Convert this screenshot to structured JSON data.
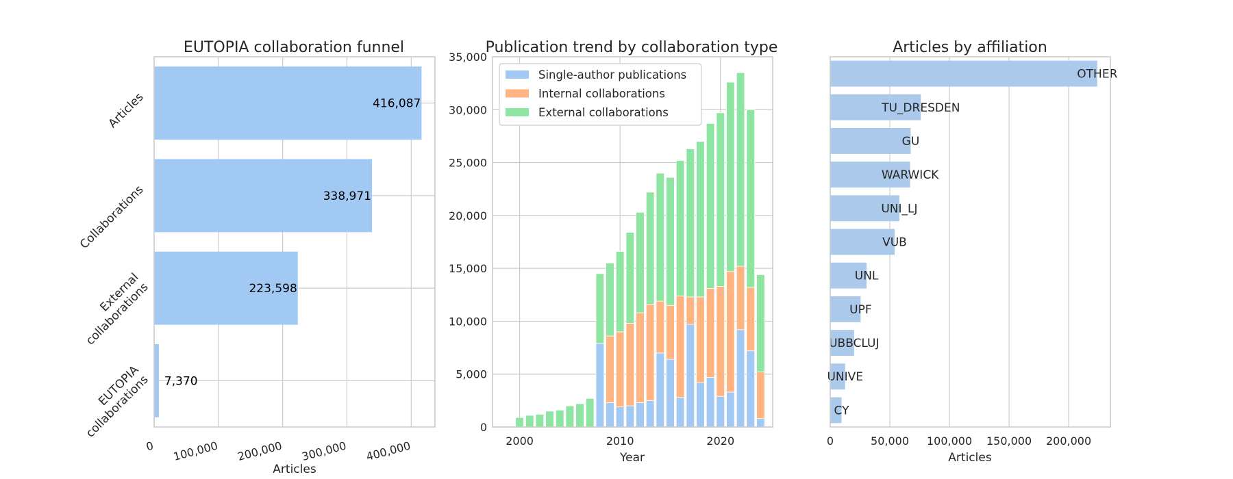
{
  "colors": {
    "blue": "#a1c9f4",
    "blue_affil": "#abc9ea",
    "orange": "#ffb482",
    "green": "#8de5a1"
  },
  "chart_data": [
    {
      "type": "bar",
      "orientation": "horizontal",
      "title": "EUTOPIA collaboration funnel",
      "xlabel": "Articles",
      "ylabel": "",
      "categories": [
        "Articles",
        "Collaborations",
        "External collaborations",
        "EUTOPIA collaborations"
      ],
      "category_lines": [
        [
          "Articles"
        ],
        [
          "Collaborations"
        ],
        [
          "External",
          "collaborations"
        ],
        [
          "EUTOPIA",
          "collaborations"
        ]
      ],
      "values": [
        416087,
        338971,
        223598,
        7370
      ],
      "value_labels": [
        "416,087",
        "338,971",
        "223,598",
        "7,370"
      ],
      "xlim": [
        0,
        437000
      ],
      "xticks": [
        0,
        100000,
        200000,
        300000,
        400000
      ],
      "xtick_labels": [
        "0",
        "100,000",
        "200,000",
        "300,000",
        "400,000"
      ],
      "grid": true
    },
    {
      "type": "bar",
      "stacked": true,
      "title": "Publication trend by collaboration type",
      "xlabel": "Year",
      "ylabel": "",
      "x": [
        2000,
        2001,
        2002,
        2003,
        2004,
        2005,
        2006,
        2007,
        2008,
        2009,
        2010,
        2011,
        2012,
        2013,
        2014,
        2015,
        2016,
        2017,
        2018,
        2019,
        2020,
        2021,
        2022,
        2023,
        2024
      ],
      "series": [
        {
          "name": "Single-author publications",
          "values": [
            0,
            0,
            0,
            0,
            0,
            0,
            0,
            0,
            7900,
            2300,
            1900,
            2000,
            2300,
            2500,
            7000,
            6400,
            2800,
            9700,
            4200,
            4700,
            2900,
            3300,
            9200,
            7200,
            800
          ]
        },
        {
          "name": "Internal collaborations",
          "values": [
            0,
            0,
            0,
            0,
            0,
            0,
            0,
            0,
            0,
            6300,
            7100,
            7800,
            8500,
            9100,
            4900,
            5100,
            9600,
            2600,
            8100,
            8400,
            10400,
            11400,
            6000,
            6000,
            4400
          ]
        },
        {
          "name": "External collaborations",
          "values": [
            900,
            1100,
            1200,
            1500,
            1600,
            2000,
            2200,
            2700,
            6600,
            6900,
            7600,
            8600,
            9500,
            10600,
            12100,
            12100,
            12800,
            14000,
            14700,
            15600,
            16400,
            17900,
            18300,
            16800,
            9200
          ]
        }
      ],
      "ylim": [
        0,
        35000
      ],
      "yticks": [
        0,
        5000,
        10000,
        15000,
        20000,
        25000,
        30000,
        35000
      ],
      "ytick_labels": [
        "0",
        "5,000",
        "10,000",
        "15,000",
        "20,000",
        "25,000",
        "30,000",
        "35,000"
      ],
      "xlim": [
        1997.3,
        2025.2
      ],
      "xticks": [
        2000,
        2010,
        2020
      ],
      "xtick_labels": [
        "2000",
        "2010",
        "2020"
      ],
      "legend": "top-left",
      "grid": true
    },
    {
      "type": "bar",
      "orientation": "horizontal",
      "title": "Articles by affiliation",
      "xlabel": "Articles",
      "ylabel": "",
      "categories": [
        "OTHER",
        "TU_DRESDEN",
        "GU",
        "WARWICK",
        "UNI_LJ",
        "VUB",
        "UNL",
        "UPF",
        "UBBCLUJ",
        "UNIVE",
        "CY"
      ],
      "values": [
        224000,
        76000,
        67500,
        67000,
        58000,
        54000,
        30500,
        25500,
        20000,
        12500,
        9500
      ],
      "xlim": [
        0,
        235000
      ],
      "xticks": [
        0,
        50000,
        100000,
        150000,
        200000
      ],
      "xtick_labels": [
        "0",
        "50,000",
        "100,000",
        "150,000",
        "200,000"
      ],
      "grid": true
    }
  ]
}
